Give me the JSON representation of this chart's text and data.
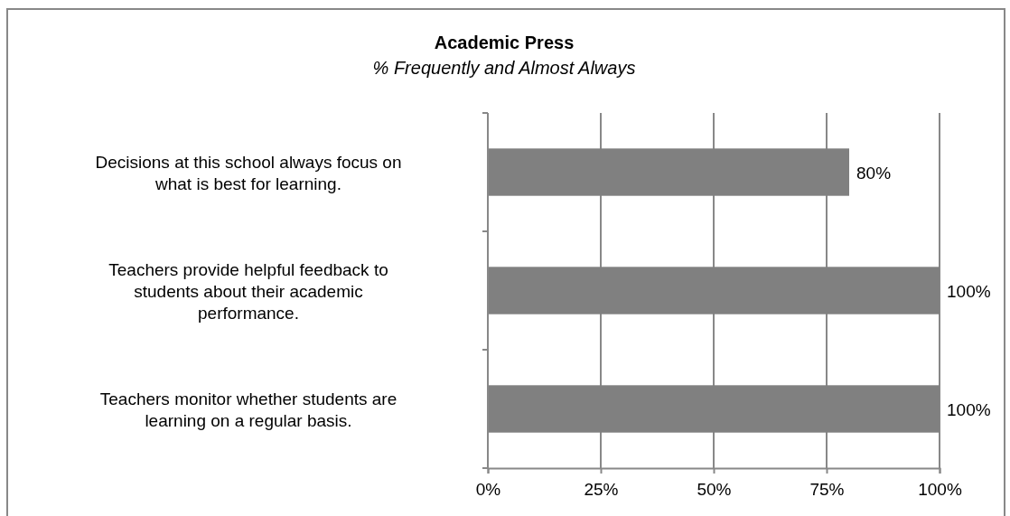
{
  "chart_data": {
    "type": "bar",
    "orientation": "horizontal",
    "title": "Academic Press",
    "subtitle": "% Frequently and Almost Always",
    "categories": [
      "Decisions at this school always focus on what is best for learning.",
      "Teachers provide helpful feedback to students about their academic performance.",
      "Teachers monitor whether students are learning on a regular basis."
    ],
    "values": [
      80,
      100,
      100
    ],
    "color": "#808080",
    "value_labels": [
      "80%",
      "100%",
      "100%"
    ],
    "xlim": [
      0,
      100
    ],
    "xticks": [
      {
        "value": 0,
        "label": "0%"
      },
      {
        "value": 25,
        "label": "25%"
      },
      {
        "value": 50,
        "label": "50%"
      },
      {
        "value": 75,
        "label": "75%"
      },
      {
        "value": 100,
        "label": "100%"
      }
    ],
    "grid": "x"
  }
}
